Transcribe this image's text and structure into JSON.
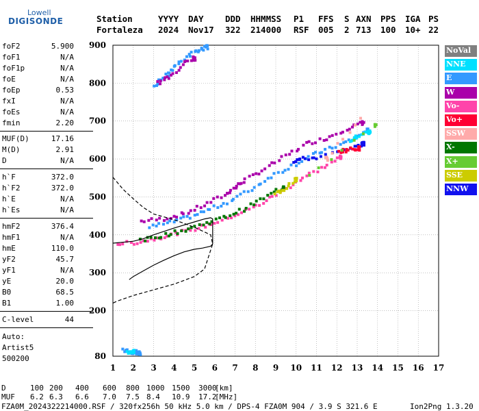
{
  "logo": {
    "top": "Lowell",
    "bottom": "DIGISONDE"
  },
  "header": {
    "columns": [
      {
        "label": "Station",
        "value": "Fortaleza"
      },
      {
        "label": "YYYY",
        "value": "2024"
      },
      {
        "label": "DAY",
        "value": "Nov17"
      },
      {
        "label": "DDD",
        "value": "322"
      },
      {
        "label": "HHMMSS",
        "value": "214000"
      },
      {
        "label": "P1",
        "value": "RSF"
      },
      {
        "label": "FFS",
        "value": "005"
      },
      {
        "label": "S",
        "value": "2"
      },
      {
        "label": "AXN",
        "value": "713"
      },
      {
        "label": "PPS",
        "value": "100"
      },
      {
        "label": "IGA",
        "value": "10+"
      },
      {
        "label": "PS",
        "value": "22"
      }
    ]
  },
  "params": [
    {
      "label": "foF2",
      "value": "5.900"
    },
    {
      "label": "foF1",
      "value": "N/A"
    },
    {
      "label": "foF1p",
      "value": "N/A"
    },
    {
      "label": "foE",
      "value": "N/A"
    },
    {
      "label": "foEp",
      "value": "0.53"
    },
    {
      "label": "fxI",
      "value": "N/A"
    },
    {
      "label": "foEs",
      "value": "N/A"
    },
    {
      "label": "fmin",
      "value": "2.20"
    },
    {
      "label": "MUF(D)",
      "value": "17.16"
    },
    {
      "label": "M(D)",
      "value": "2.91"
    },
    {
      "label": "D",
      "value": "N/A"
    },
    {
      "label": "h`F",
      "value": "372.0"
    },
    {
      "label": "h`F2",
      "value": "372.0"
    },
    {
      "label": "h`E",
      "value": "N/A"
    },
    {
      "label": "h`Es",
      "value": "N/A"
    },
    {
      "label": "hmF2",
      "value": "376.4"
    },
    {
      "label": "hmF1",
      "value": "N/A"
    },
    {
      "label": "hmE",
      "value": "110.0"
    },
    {
      "label": "yF2",
      "value": "45.7"
    },
    {
      "label": "yF1",
      "value": "N/A"
    },
    {
      "label": "yE",
      "value": "20.0"
    },
    {
      "label": "B0",
      "value": "68.5"
    },
    {
      "label": "B1",
      "value": "1.00"
    },
    {
      "label": "C-level",
      "value": "44"
    }
  ],
  "autoscaling": {
    "line1": "Auto:",
    "line2": "Artist5",
    "line3": "500200"
  },
  "legend": [
    {
      "name": "NoVal",
      "color": "#808080"
    },
    {
      "name": "NNE",
      "color": "#00e0ff"
    },
    {
      "name": "E",
      "color": "#3399ff"
    },
    {
      "name": "W",
      "color": "#aa00aa"
    },
    {
      "name": "Vo-",
      "color": "#ff44aa"
    },
    {
      "name": "Vo+",
      "color": "#ff0033"
    },
    {
      "name": "SSW",
      "color": "#ffaaaa"
    },
    {
      "name": "X-",
      "color": "#007700"
    },
    {
      "name": "X+",
      "color": "#66cc33"
    },
    {
      "name": "SSE",
      "color": "#cccc00"
    },
    {
      "name": "NNW",
      "color": "#1111ee"
    }
  ],
  "chart_data": {
    "type": "scatter",
    "title": "",
    "xlabel": "",
    "ylabel": "",
    "xlim": [
      1,
      17
    ],
    "ylim": [
      80,
      900
    ],
    "x_ticks": [
      "1",
      "2",
      "3",
      "4",
      "5",
      "6",
      "7",
      "8",
      "9",
      "10",
      "11",
      "12",
      "13",
      "14",
      "15",
      "16",
      "17"
    ],
    "y_ticks": [
      "80",
      "200",
      "300",
      "400",
      "500",
      "600",
      "700",
      "800",
      "900"
    ],
    "grid": true,
    "traces": [
      {
        "name": "W",
        "color": "#aa00aa",
        "points": [
          [
            2.4,
            436
          ],
          [
            3.5,
            442
          ],
          [
            4.5,
            456
          ],
          [
            5.5,
            478
          ],
          [
            6.5,
            505
          ],
          [
            7,
            525
          ],
          [
            7.5,
            545
          ],
          [
            8.5,
            575
          ],
          [
            9.5,
            607
          ],
          [
            10.5,
            640
          ],
          [
            11.5,
            655
          ],
          [
            12.5,
            680
          ],
          [
            13.3,
            695
          ]
        ]
      },
      {
        "name": "E",
        "color": "#3399ff",
        "points": [
          [
            2.8,
            420
          ],
          [
            3.8,
            432
          ],
          [
            4.8,
            448
          ],
          [
            5.8,
            468
          ],
          [
            6.8,
            490
          ],
          [
            7.8,
            520
          ],
          [
            8.8,
            555
          ],
          [
            9.8,
            582
          ],
          [
            10.8,
            610
          ],
          [
            11.8,
            630
          ],
          [
            12.8,
            652
          ],
          [
            13.5,
            675
          ]
        ]
      },
      {
        "name": "Vo-",
        "color": "#ff44aa",
        "points": [
          [
            1.2,
            376
          ],
          [
            2.2,
            380
          ],
          [
            3.2,
            392
          ],
          [
            4.2,
            405
          ],
          [
            5.2,
            418
          ],
          [
            6.2,
            435
          ],
          [
            7.2,
            455
          ],
          [
            8.2,
            480
          ],
          [
            9.2,
            512
          ],
          [
            10.2,
            545
          ],
          [
            11.2,
            575
          ],
          [
            12.2,
            605
          ]
        ]
      },
      {
        "name": "X-",
        "color": "#007700",
        "points": [
          [
            2.4,
            384
          ],
          [
            3.4,
            398
          ],
          [
            4.4,
            410
          ],
          [
            5.4,
            428
          ],
          [
            6.4,
            445
          ],
          [
            7.4,
            467
          ],
          [
            8.4,
            497
          ],
          [
            9.4,
            527
          ]
        ]
      },
      {
        "name": "NNW",
        "color": "#1111ee",
        "points": [
          [
            9.9,
            595
          ],
          [
            10.3,
            600
          ],
          [
            11.2,
            605
          ],
          [
            12.9,
            630
          ],
          [
            13.3,
            640
          ]
        ]
      },
      {
        "name": "Vo+",
        "color": "#ff0033",
        "points": [
          [
            12.1,
            620
          ],
          [
            12.6,
            625
          ],
          [
            13.1,
            628
          ]
        ]
      },
      {
        "name": "NNE",
        "color": "#00e0ff",
        "points": [
          [
            12.6,
            650
          ],
          [
            13.1,
            660
          ],
          [
            13.6,
            670
          ]
        ]
      },
      {
        "name": "SSE",
        "color": "#cccc00",
        "points": [
          [
            9,
            510
          ],
          [
            9.4,
            520
          ],
          [
            10,
            545
          ]
        ]
      },
      {
        "name": "X+",
        "color": "#66cc33",
        "points": [
          [
            10.6,
            560
          ],
          [
            13.9,
            690
          ]
        ]
      },
      {
        "name": "SSW",
        "color": "#ffaaaa",
        "points": [
          [
            13.2,
            710
          ],
          [
            11.5,
            600
          ]
        ]
      },
      {
        "name": "E-high",
        "color": "#3399ff",
        "points": [
          [
            3,
            790
          ],
          [
            3.6,
            820
          ],
          [
            4,
            840
          ],
          [
            4.6,
            870
          ],
          [
            5.2,
            885
          ],
          [
            5.6,
            895
          ]
        ]
      },
      {
        "name": "W-high",
        "color": "#aa00aa",
        "points": [
          [
            3.2,
            800
          ],
          [
            3.8,
            815
          ],
          [
            4.4,
            850
          ],
          [
            5,
            865
          ]
        ]
      },
      {
        "name": "E-low",
        "color": "#3399ff",
        "points": [
          [
            1.5,
            95
          ],
          [
            1.8,
            90
          ],
          [
            2.1,
            92
          ],
          [
            2.3,
            88
          ]
        ]
      },
      {
        "name": "NNE-low",
        "color": "#00e0ff",
        "points": [
          [
            1.7,
            88
          ],
          [
            2.0,
            93
          ]
        ]
      }
    ],
    "profile_solid": [
      [
        1.0,
        378
      ],
      [
        2.0,
        383
      ],
      [
        2.5,
        390
      ],
      [
        3.0,
        400
      ],
      [
        4.0,
        418
      ],
      [
        4.5,
        426
      ],
      [
        5.0,
        434
      ],
      [
        5.5,
        442
      ],
      [
        5.8,
        445
      ],
      [
        5.9,
        442
      ],
      [
        5.9,
        376
      ],
      [
        5.8,
        370
      ],
      [
        5.4,
        365
      ],
      [
        5.0,
        362
      ],
      [
        4.5,
        355
      ],
      [
        4.0,
        345
      ],
      [
        3.5,
        333
      ],
      [
        3.0,
        320
      ],
      [
        2.5,
        305
      ],
      [
        2.0,
        290
      ],
      [
        1.8,
        282
      ]
    ],
    "profile_dashed": [
      [
        1.0,
        552
      ],
      [
        1.5,
        520
      ],
      [
        2.0,
        495
      ],
      [
        2.5,
        472
      ],
      [
        3.0,
        455
      ],
      [
        4.0,
        440
      ],
      [
        4.6,
        428
      ],
      [
        5.0,
        420
      ],
      [
        5.4,
        410
      ],
      [
        5.8,
        400
      ],
      [
        5.9,
        376
      ],
      [
        5.5,
        310
      ],
      [
        5.0,
        290
      ],
      [
        4.0,
        270
      ],
      [
        3.0,
        255
      ],
      [
        2.0,
        240
      ],
      [
        1.2,
        225
      ],
      [
        1.0,
        220
      ]
    ]
  },
  "footer": {
    "d_label": "D",
    "d_values": [
      "100",
      "200",
      "400",
      "600",
      "800",
      "1000",
      "1500",
      "3000",
      "[km]"
    ],
    "muf_label": "MUF",
    "muf_values": [
      "6.2",
      "6.3",
      "6.6",
      "7.0",
      "7.5",
      "8.4",
      "10.9",
      "17.2",
      "[MHz]"
    ],
    "info_line": "FZA0M_2024322214000.RSF / 320fx256h 50 kHz 5.0 km / DPS-4 FZA0M 904 / 3.9 S 321.6 E",
    "version": "Ion2Png 1.3.20"
  }
}
